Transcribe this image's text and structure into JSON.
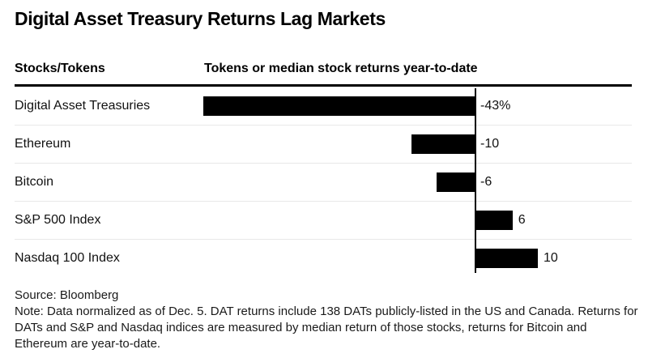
{
  "title": "Digital Asset Treasury Returns Lag Markets",
  "table_header": {
    "left": "Stocks/Tokens",
    "right": "Tokens or median stock returns year-to-date"
  },
  "chart_data": {
    "type": "bar",
    "orientation": "horizontal",
    "title": "Digital Asset Treasury Returns Lag Markets",
    "xlabel": "Tokens or median stock returns year-to-date",
    "categories": [
      "Digital Asset Treasuries",
      "Ethereum",
      "Bitcoin",
      "S&P 500 Index",
      "Nasdaq 100 Index"
    ],
    "values": [
      -43,
      -10,
      -6,
      6,
      10
    ],
    "value_labels": [
      "-43%",
      "-10",
      "-6",
      "6",
      "10"
    ],
    "unit": "percent",
    "xlim": [
      -45,
      25
    ],
    "grid": false,
    "legend": false,
    "zero_axis_line": true
  },
  "footer": {
    "source": "Source: Bloomberg",
    "note": "Note: Data normalized as of Dec. 5. DAT returns include 138 DATs publicly-listed in the US and Canada. Returns for DATs and S&P and Nasdaq indices are measured by median return of those stocks, returns for Bitcoin and Ethereum are year-to-date."
  },
  "colors": {
    "bar": "#000000",
    "title_text": "#000000",
    "body_text": "#111111",
    "header_rule": "#000000",
    "row_separator": "#e8e8e8",
    "zero_axis": "#000000",
    "background": "#ffffff"
  }
}
